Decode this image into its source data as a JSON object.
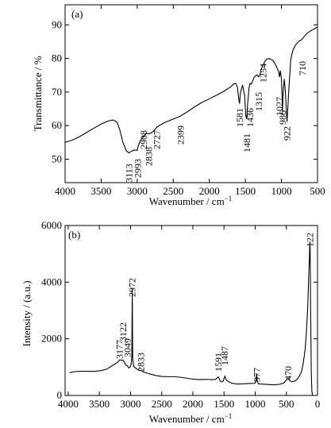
{
  "chart_data": [
    {
      "panel_label": "(a)",
      "type": "line",
      "xlabel": "Wavenumber / cm",
      "xlabel_sup": "−1",
      "ylabel": "Transmittance / %",
      "xlim": [
        4000,
        500
      ],
      "ylim": [
        43,
        96
      ],
      "x_ticks": [
        4000,
        3500,
        3000,
        2500,
        2000,
        1500,
        1000,
        500
      ],
      "y_ticks": [
        50,
        60,
        70,
        80,
        90
      ],
      "grid": false,
      "series": [
        {
          "x": [
            4000,
            3900,
            3800,
            3700,
            3600,
            3500,
            3400,
            3330,
            3280,
            3240,
            3200,
            3150,
            3113,
            3080,
            3040,
            3000,
            2993,
            2960,
            2920,
            2908,
            2880,
            2838,
            2800,
            2760,
            2727,
            2700,
            2600,
            2500,
            2399,
            2300,
            2200,
            2100,
            2000,
            1900,
            1800,
            1700,
            1660,
            1630,
            1610,
            1595,
            1581,
            1570,
            1540,
            1510,
            1495,
            1481,
            1470,
            1450,
            1436,
            1420,
            1400,
            1380,
            1340,
            1315,
            1300,
            1275,
            1254,
            1230,
            1200,
            1160,
            1120,
            1090,
            1060,
            1040,
            1027,
            1015,
            1000,
            990,
            986,
            975,
            960,
            945,
            930,
            922,
            915,
            900,
            870,
            840,
            800,
            760,
            730,
            710,
            690,
            650,
            600,
            550,
            500
          ],
          "y": [
            55,
            55.8,
            56.8,
            57.9,
            59.1,
            60.4,
            61.5,
            61.8,
            61,
            58.5,
            55,
            52.5,
            52,
            52.4,
            52.6,
            52.5,
            53.5,
            55.5,
            56.8,
            56.5,
            57.5,
            57.5,
            58,
            58.8,
            59.5,
            59.8,
            61,
            62,
            63,
            64.2,
            65.5,
            66.8,
            68,
            69.2,
            70.3,
            71.5,
            72.3,
            72.5,
            71.5,
            68.5,
            66.5,
            69.5,
            72,
            69,
            63,
            62,
            66,
            71,
            72.6,
            72.5,
            73.3,
            74.3,
            75,
            74.5,
            75.3,
            77.2,
            78,
            79,
            79.8,
            80,
            79.6,
            78.5,
            77,
            76,
            74.5,
            76.5,
            74,
            68,
            64,
            70.5,
            74,
            70,
            63.5,
            61,
            64,
            70,
            80,
            82.5,
            84,
            85,
            85.5,
            86,
            86.4,
            87.3,
            88,
            88.8,
            89.5
          ]
        }
      ],
      "annotations": [
        {
          "text": "3113",
          "x": 3113
        },
        {
          "text": "2993",
          "x": 2993
        },
        {
          "text": "2908",
          "x": 2908
        },
        {
          "text": "2838",
          "x": 2838
        },
        {
          "text": "2727",
          "x": 2727
        },
        {
          "text": "2399",
          "x": 2399
        },
        {
          "text": "1581",
          "x": 1581
        },
        {
          "text": "1481",
          "x": 1481
        },
        {
          "text": "1436",
          "x": 1436
        },
        {
          "text": "1315",
          "x": 1315
        },
        {
          "text": "1254",
          "x": 1254
        },
        {
          "text": "1027",
          "x": 1027
        },
        {
          "text": "986",
          "x": 986
        },
        {
          "text": "922",
          "x": 922
        },
        {
          "text": "710",
          "x": 710
        }
      ]
    },
    {
      "panel_label": "(b)",
      "type": "line",
      "xlabel": "Wavenumber / cm",
      "xlabel_sup": "−1",
      "ylabel": "Intensity / (a.u.)",
      "xlim": [
        4050,
        0
      ],
      "ylim": [
        0,
        6000
      ],
      "x_ticks": [
        4000,
        3500,
        3000,
        2500,
        2000,
        1500,
        1000,
        500,
        0
      ],
      "y_ticks": [
        0,
        2000,
        4000,
        6000
      ],
      "grid": false,
      "series": [
        {
          "x": [
            3980,
            3900,
            3800,
            3700,
            3600,
            3500,
            3400,
            3350,
            3300,
            3250,
            3200,
            3177,
            3150,
            3122,
            3100,
            3070,
            3049,
            3030,
            3010,
            2990,
            2980,
            2972,
            2965,
            2950,
            2900,
            2850,
            2833,
            2800,
            2700,
            2600,
            2500,
            2400,
            2300,
            2200,
            2100,
            2000,
            1900,
            1800,
            1700,
            1640,
            1591,
            1560,
            1530,
            1510,
            1487,
            1460,
            1420,
            1380,
            1300,
            1200,
            1100,
            1040,
            1000,
            985,
            977,
            968,
            950,
            900,
            800,
            700,
            600,
            540,
            500,
            470,
            450,
            420,
            380,
            340,
            300,
            260,
            230,
            200,
            180,
            160,
            150,
            140,
            130,
            125,
            122,
            118,
            110,
            100,
            90,
            80
          ],
          "y": [
            800,
            820,
            830,
            850,
            870,
            890,
            920,
            950,
            1020,
            1100,
            1200,
            1280,
            1250,
            1230,
            1150,
            1050,
            1060,
            1000,
            1000,
            1100,
            1300,
            3750,
            1300,
            1050,
            950,
            880,
            860,
            820,
            770,
            730,
            690,
            660,
            640,
            620,
            610,
            600,
            580,
            570,
            540,
            540,
            650,
            520,
            500,
            530,
            660,
            510,
            470,
            450,
            430,
            420,
            410,
            400,
            420,
            560,
            800,
            560,
            400,
            380,
            370,
            380,
            420,
            460,
            540,
            580,
            520,
            490,
            520,
            560,
            650,
            800,
            1100,
            1600,
            2200,
            3000,
            3600,
            4300,
            4800,
            5300,
            5450,
            5200,
            3000,
            800,
            100,
            0
          ]
        }
      ],
      "annotations": [
        {
          "text": "3177",
          "x": 3177
        },
        {
          "text": "3122",
          "x": 3122
        },
        {
          "text": "3049",
          "x": 3049
        },
        {
          "text": "2972",
          "x": 2972
        },
        {
          "text": "2833",
          "x": 2833
        },
        {
          "text": "1591",
          "x": 1591
        },
        {
          "text": "1487",
          "x": 1487
        },
        {
          "text": "977",
          "x": 977
        },
        {
          "text": "470",
          "x": 470
        },
        {
          "text": "122",
          "x": 122
        }
      ]
    }
  ]
}
